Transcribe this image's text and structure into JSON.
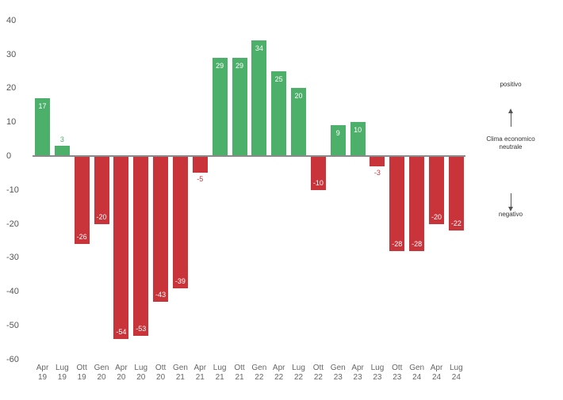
{
  "chart_data": {
    "type": "bar",
    "title": "",
    "xlabel": "",
    "ylabel": "",
    "ylim": [
      -60,
      40
    ],
    "yticks": [
      40,
      30,
      20,
      10,
      0,
      -10,
      -20,
      -30,
      -40,
      -50,
      -60
    ],
    "grid": false,
    "categories": [
      "Apr 19",
      "Lug 19",
      "Ott 19",
      "Gen 20",
      "Apr 20",
      "Lug 20",
      "Ott 20",
      "Gen 21",
      "Apr 21",
      "Lug 21",
      "Ott 21",
      "Gen 22",
      "Apr 22",
      "Lug 22",
      "Ott 22",
      "Gen 23",
      "Apr 23",
      "Lug 23",
      "Ott 23",
      "Gen 24",
      "Apr 24",
      "Lug 24"
    ],
    "category_lines": [
      [
        "Apr",
        "19"
      ],
      [
        "Lug",
        "19"
      ],
      [
        "Ott",
        "19"
      ],
      [
        "Gen",
        "20"
      ],
      [
        "Apr",
        "20"
      ],
      [
        "Lug",
        "20"
      ],
      [
        "Ott",
        "20"
      ],
      [
        "Gen",
        "21"
      ],
      [
        "Apr",
        "21"
      ],
      [
        "Lug",
        "21"
      ],
      [
        "Ott",
        "21"
      ],
      [
        "Gen",
        "22"
      ],
      [
        "Apr",
        "22"
      ],
      [
        "Lug",
        "22"
      ],
      [
        "Ott",
        "22"
      ],
      [
        "Gen",
        "23"
      ],
      [
        "Apr",
        "23"
      ],
      [
        "Lug",
        "23"
      ],
      [
        "Ott",
        "23"
      ],
      [
        "Gen",
        "24"
      ],
      [
        "Apr",
        "24"
      ],
      [
        "Lug",
        "24"
      ]
    ],
    "values": [
      17,
      3,
      -26,
      -20,
      -54,
      -53,
      -43,
      -39,
      -5,
      29,
      29,
      34,
      25,
      20,
      -10,
      9,
      10,
      -3,
      -28,
      -28,
      -20,
      -22
    ],
    "colors": {
      "positive": "#4caf6a",
      "negative": "#c8343a",
      "baseline": "#8a8a8a"
    },
    "annotations": {
      "top": "positivo",
      "middle_line1": "Clima economico",
      "middle_line2": "neutrale",
      "bottom": "negativo"
    }
  }
}
